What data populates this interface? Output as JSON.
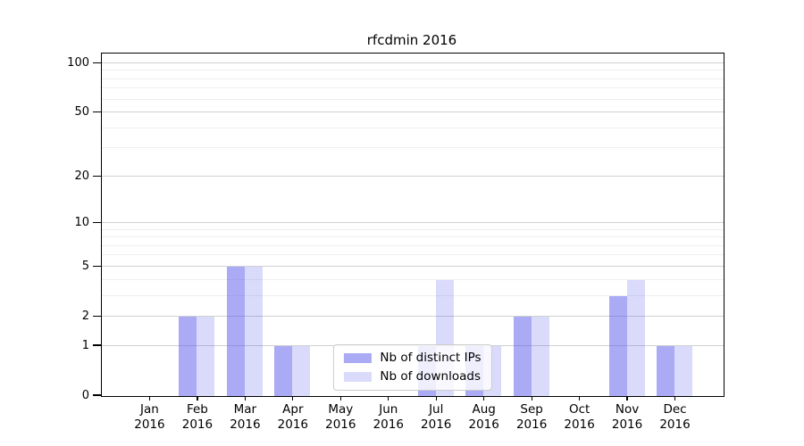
{
  "title": "rfcdmin 2016",
  "chart_data": {
    "type": "bar",
    "title": "rfcdmin 2016",
    "categories": [
      "Jan",
      "Feb",
      "Mar",
      "Apr",
      "May",
      "Jun",
      "Jul",
      "Aug",
      "Sep",
      "Oct",
      "Nov",
      "Dec"
    ],
    "year": "2016",
    "series": [
      {
        "name": "Nb of distinct IPs",
        "color": "#5555eb",
        "alpha": 0.5,
        "composite_color": "#aaaaf5",
        "values": [
          0,
          2,
          5,
          1,
          0,
          0,
          1,
          1,
          2,
          0,
          3,
          1
        ]
      },
      {
        "name": "Nb of downloads",
        "color": "#5555eb",
        "alpha": 0.22,
        "composite_color": "#d9d9fa",
        "values": [
          0,
          2,
          5,
          1,
          0,
          0,
          4,
          1,
          2,
          0,
          4,
          1
        ]
      }
    ],
    "yscale": "log1p",
    "ylim": [
      0,
      114
    ],
    "y_major_ticks": [
      0,
      1,
      2,
      5,
      10,
      20,
      50,
      100
    ],
    "y_minor_ticks": [
      3,
      4,
      6,
      7,
      8,
      9,
      30,
      40,
      60,
      70,
      80,
      90
    ],
    "grid": true,
    "legend_position": "lower center"
  },
  "colors": {
    "background": "#ffffff",
    "spine": "#000000",
    "grid_major": "#d0d0d0",
    "grid_minor": "#efefef",
    "legend_border": "#cccccc",
    "text": "#000000"
  }
}
